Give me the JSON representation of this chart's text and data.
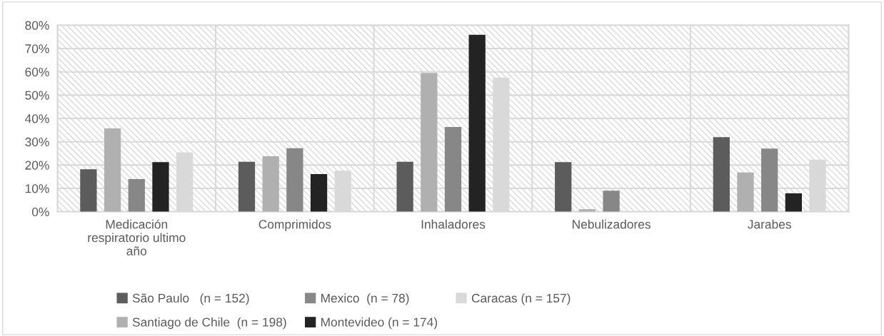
{
  "chart_data": {
    "type": "bar",
    "categories": [
      "Medicación respiratorio ultimo año",
      "Comprimidos",
      "Inhaladores",
      "Nebulizadores",
      "Jarabes"
    ],
    "series": [
      {
        "name": "São Paulo   (n = 152)",
        "color": "#5c5c5c",
        "values": [
          18.2,
          21.4,
          21.4,
          21.3,
          32.0
        ]
      },
      {
        "name": "Santiago de Chile  (n = 198)",
        "color": "#b0b0b0",
        "values": [
          35.7,
          23.8,
          59.5,
          1.1,
          16.8
        ]
      },
      {
        "name": "Mexico  (n = 78)",
        "color": "#878787",
        "values": [
          14.0,
          27.2,
          36.3,
          9.0,
          27.1
        ]
      },
      {
        "name": "Montevideo (n = 174)",
        "color": "#232323",
        "values": [
          21.3,
          16.1,
          75.9,
          0,
          7.9
        ]
      },
      {
        "name": "Caracas (n = 157)",
        "color": "#d9d9d9",
        "values": [
          25.4,
          17.6,
          57.5,
          0,
          22.3
        ]
      }
    ],
    "ylim": [
      0,
      80
    ],
    "yticks": [
      {
        "value": 0,
        "label": "0%"
      },
      {
        "value": 10,
        "label": "10%"
      },
      {
        "value": 20,
        "label": "20%"
      },
      {
        "value": 30,
        "label": "30%"
      },
      {
        "value": 40,
        "label": "40%"
      },
      {
        "value": 50,
        "label": "50%"
      },
      {
        "value": 60,
        "label": "60%"
      },
      {
        "value": 70,
        "label": "70%"
      },
      {
        "value": 80,
        "label": "80%"
      }
    ],
    "grid": true,
    "legend": "bottom"
  }
}
